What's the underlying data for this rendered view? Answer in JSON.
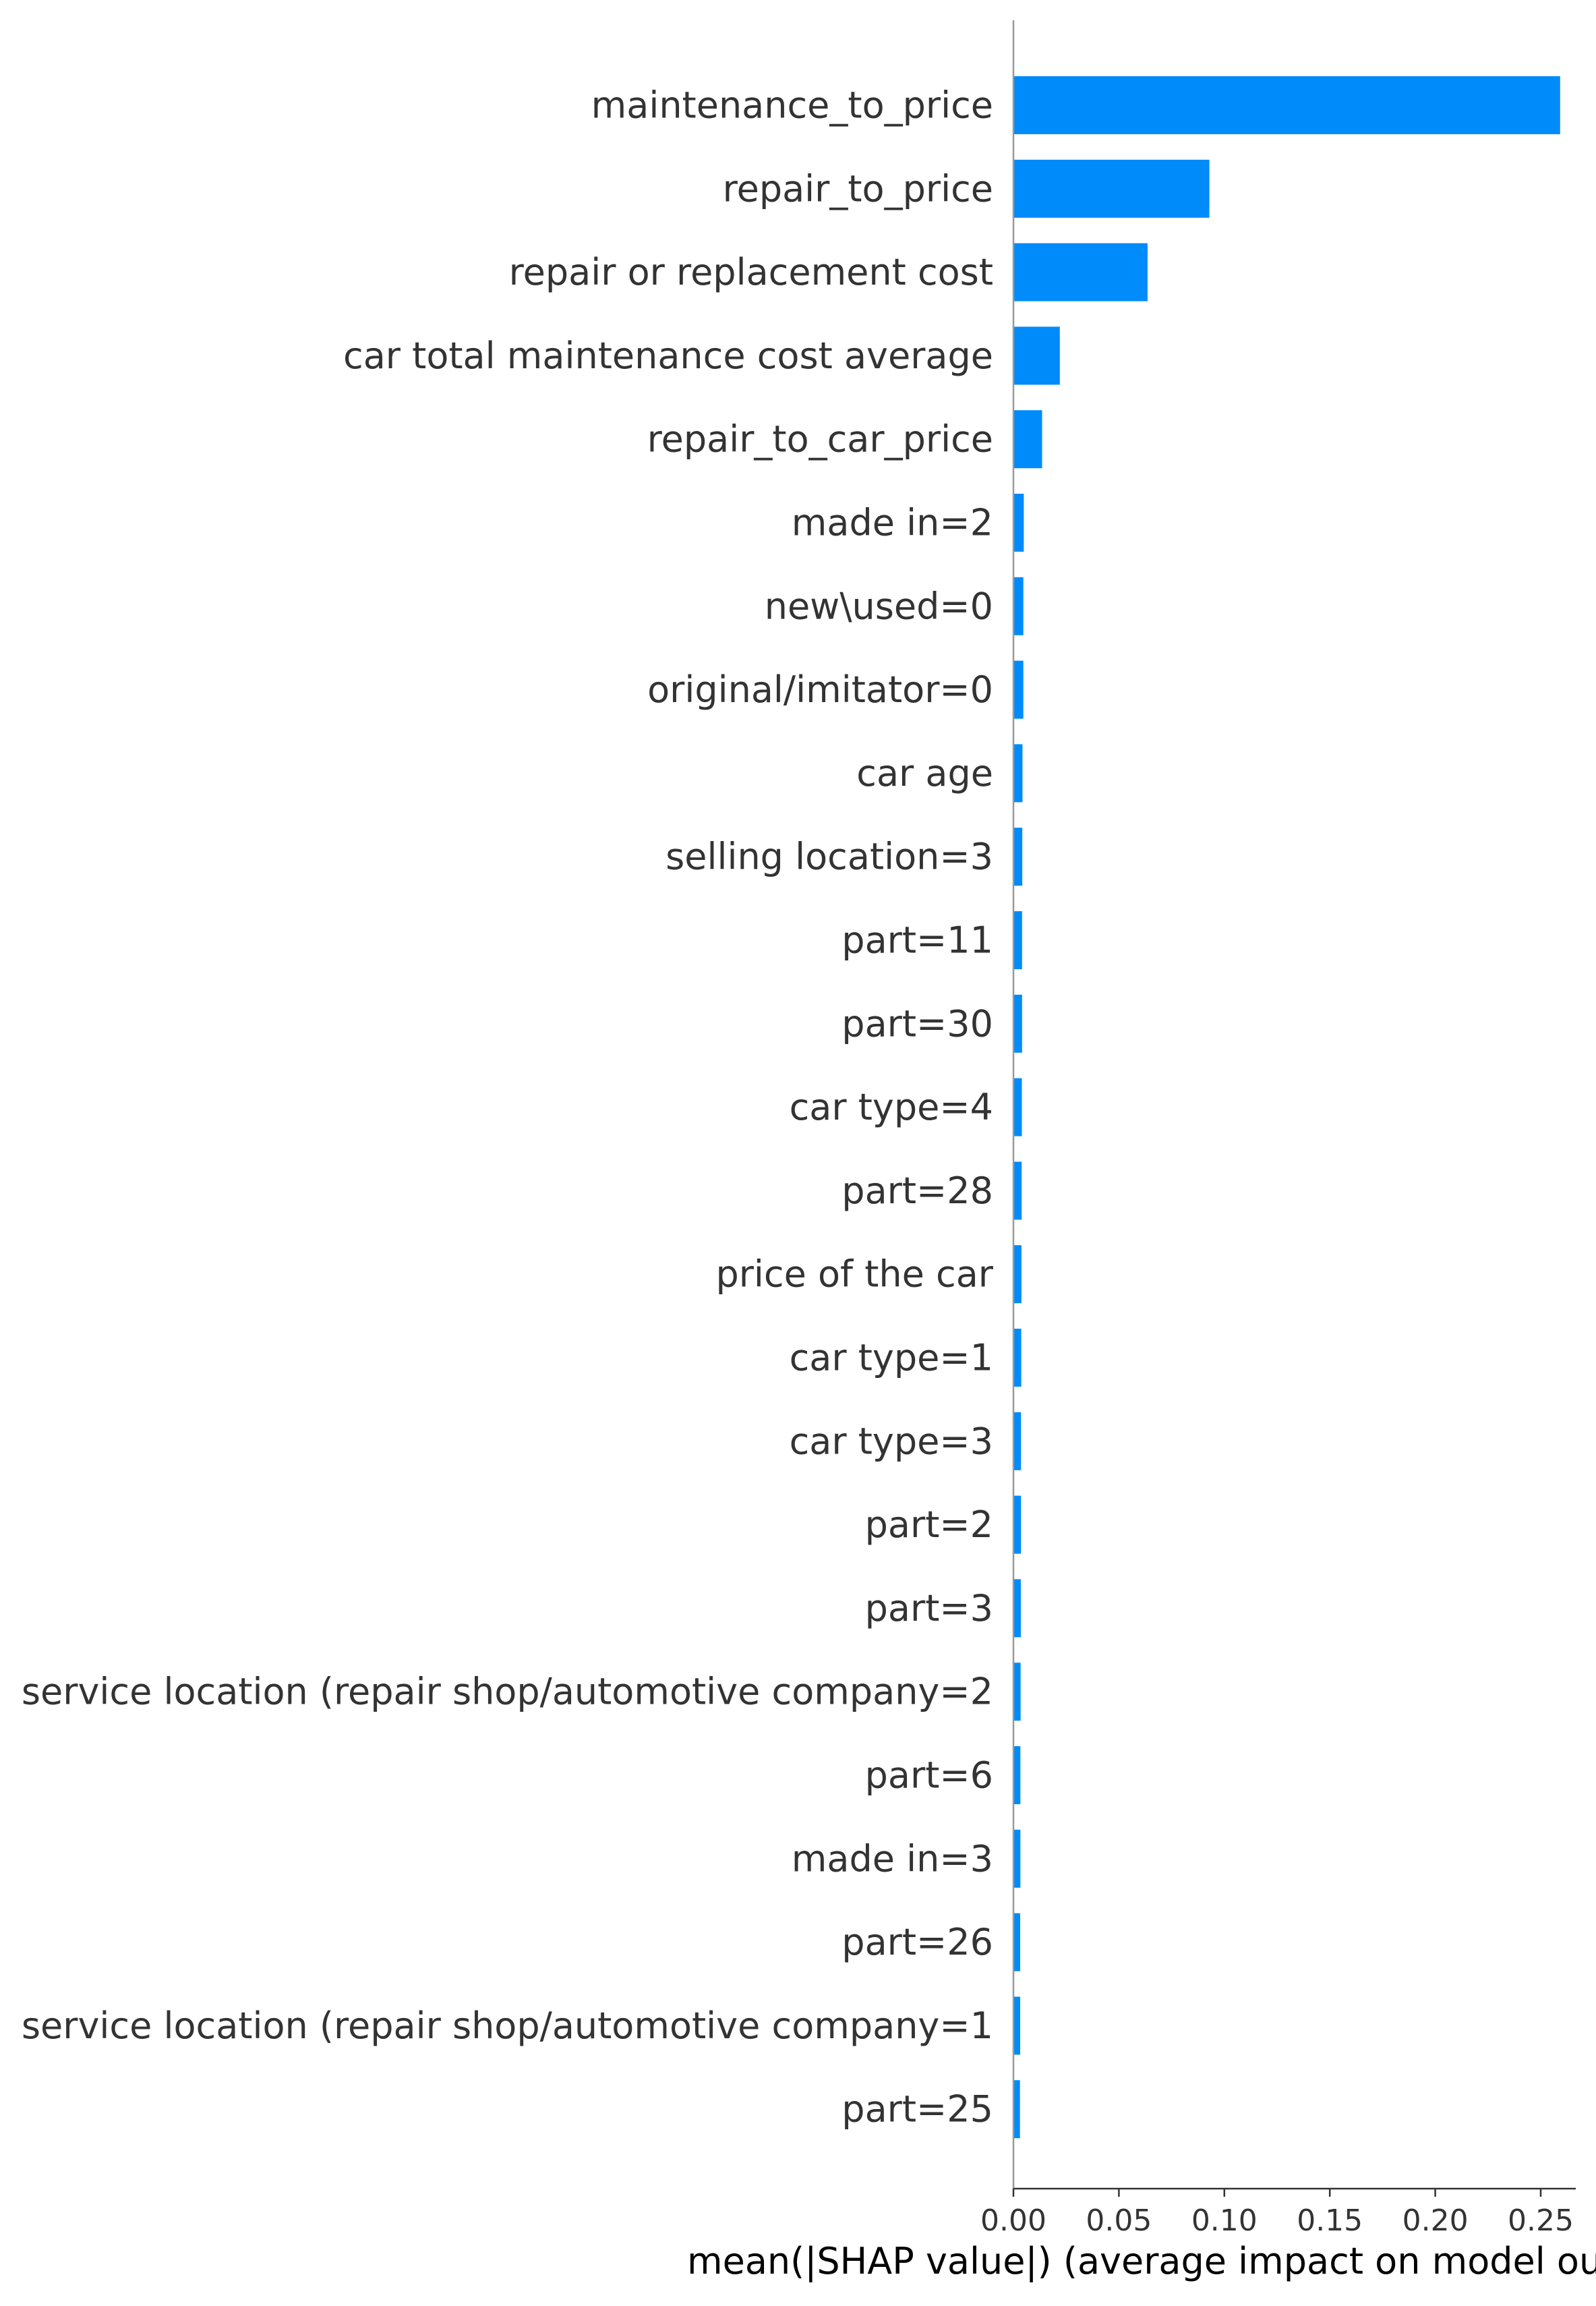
{
  "chart_data": {
    "type": "bar",
    "orientation": "horizontal",
    "title": "",
    "xlabel": "mean(|SHAP value|) (average impact on model output magnitude)",
    "ylabel": "",
    "xlim": [
      0,
      0.27
    ],
    "x_ticks": [
      0.0,
      0.05,
      0.1,
      0.15,
      0.2,
      0.25
    ],
    "x_tick_labels": [
      "0.00",
      "0.05",
      "0.10",
      "0.15",
      "0.20",
      "0.25"
    ],
    "grid": false,
    "legend": "none",
    "bar_color": "#008bfb",
    "categories": [
      "maintenance_to_price",
      "repair_to_price",
      "repair or replacement cost",
      "car total maintenance cost average",
      "repair_to_car_price",
      "made in=2",
      "new\\used=0",
      "original/imitator=0",
      "car age",
      "selling location=3",
      "part=11",
      "part=30",
      "car type=4",
      "part=28",
      "price of the car",
      "car type=1",
      "car type=3",
      "part=2",
      "part=3",
      "service location (repair shop/automotive company=2",
      "part=6",
      "made in=3",
      "part=26",
      "service location (repair shop/automotive company=1",
      "part=25"
    ],
    "values": [
      0.2592,
      0.0929,
      0.0636,
      0.022,
      0.0136,
      0.0049,
      0.0047,
      0.0047,
      0.0043,
      0.0042,
      0.0041,
      0.0041,
      0.004,
      0.0039,
      0.0038,
      0.0037,
      0.0036,
      0.0036,
      0.0035,
      0.0034,
      0.0033,
      0.0033,
      0.0032,
      0.0032,
      0.0031
    ]
  }
}
